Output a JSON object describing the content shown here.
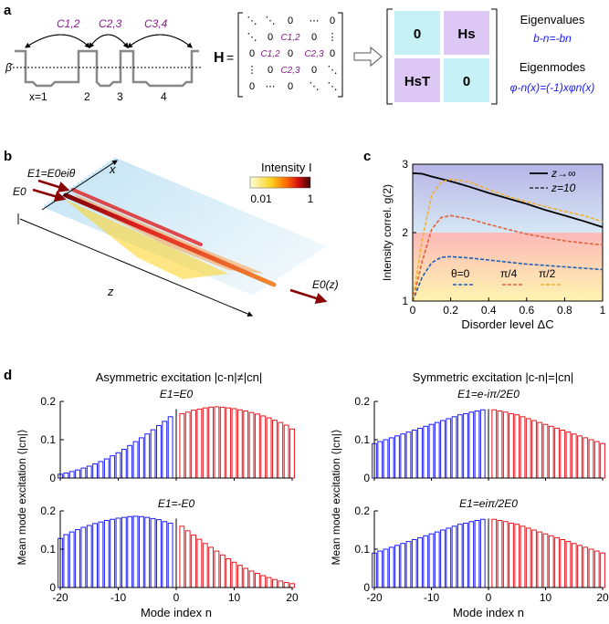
{
  "panel_labels": {
    "a": "a",
    "b": "b",
    "c": "c",
    "d": "d"
  },
  "panel_a": {
    "coupling_labels": [
      "C1,2",
      "C2,3",
      "C3,4"
    ],
    "beta_label": "β̄",
    "site_labels": [
      "x=1",
      "2",
      "3",
      "4"
    ],
    "H_label": "H",
    "matrix_rows": [
      [
        "⋱",
        "⋱",
        "0",
        "⋯",
        "0"
      ],
      [
        "⋱",
        "0",
        "C1,2",
        "0",
        "⋮"
      ],
      [
        "0",
        "C1,2",
        "0",
        "C2,3",
        "0"
      ],
      [
        "⋮",
        "0",
        "C2,3",
        "0",
        "⋱"
      ],
      [
        "0",
        "⋯",
        "0",
        "⋱",
        "⋱"
      ]
    ],
    "block": {
      "tl": "0",
      "tr": "Hs",
      "bl": "HsT",
      "br": "0"
    },
    "eigenvalues_title": "Eigenvalues",
    "eigenvalues_eq": "b-n=-bn",
    "eigenmodes_title": "Eigenmodes",
    "eigenmodes_eq": "φ-n(x)=(-1)xφn(x)"
  },
  "panel_b": {
    "e1_label": "E1=E0eiθ",
    "e0_label": "E0",
    "x_axis": "x",
    "z_axis": "z",
    "out_label": "E0(z)",
    "colorbar_title": "Intensity I",
    "colorbar_ticks": [
      "0.01",
      "1"
    ]
  },
  "chart_data": [
    {
      "id": "c",
      "type": "line",
      "ylabel": "Intensity correl. g(2)",
      "xlabel": "Disorder level ΔC",
      "xlim": [
        0,
        1
      ],
      "ylim": [
        1,
        3
      ],
      "xticks": [
        "0",
        "0.2",
        "0.4",
        "0.6",
        "0.8",
        "1"
      ],
      "yticks": [
        "1",
        "2",
        "3"
      ],
      "legend": [
        "z→∞",
        "z=10"
      ],
      "theta_legend": [
        "θ=0",
        "π/4",
        "π/2"
      ],
      "series": [
        {
          "name": "z→∞",
          "x": [
            0,
            0.05,
            0.1,
            0.2,
            0.3,
            0.4,
            0.5,
            0.6,
            0.7,
            0.8,
            0.9,
            1.0
          ],
          "y": [
            2.87,
            2.86,
            2.82,
            2.75,
            2.67,
            2.58,
            2.5,
            2.42,
            2.33,
            2.25,
            2.17,
            2.08
          ]
        },
        {
          "name": "θ=0",
          "x": [
            0,
            0.05,
            0.1,
            0.15,
            0.2,
            0.3,
            0.4,
            0.5,
            0.6,
            0.7,
            0.8,
            0.9,
            1.0
          ],
          "y": [
            1.0,
            1.35,
            1.56,
            1.64,
            1.65,
            1.63,
            1.6,
            1.57,
            1.54,
            1.52,
            1.5,
            1.48,
            1.46
          ]
        },
        {
          "name": "π/4",
          "x": [
            0,
            0.05,
            0.1,
            0.15,
            0.2,
            0.3,
            0.4,
            0.5,
            0.6,
            0.7,
            0.8,
            0.9,
            1.0
          ],
          "y": [
            1.0,
            1.58,
            2.05,
            2.22,
            2.25,
            2.2,
            2.12,
            2.05,
            1.98,
            1.93,
            1.88,
            1.85,
            1.82
          ]
        },
        {
          "name": "π/2",
          "x": [
            0,
            0.05,
            0.1,
            0.15,
            0.2,
            0.3,
            0.4,
            0.5,
            0.6,
            0.7,
            0.8,
            0.9,
            1.0
          ],
          "y": [
            1.0,
            1.9,
            2.55,
            2.74,
            2.78,
            2.74,
            2.63,
            2.53,
            2.45,
            2.38,
            2.31,
            2.25,
            2.16
          ]
        }
      ]
    },
    {
      "id": "d1",
      "type": "bar",
      "column_title": "Asymmetric excitation |c-n|≠|cn|",
      "title": "E1=E0",
      "ylabel": "Mean mode excitation ⟨|cn|⟩",
      "xlabel": "",
      "ylim": [
        0,
        0.2
      ],
      "yticks": [
        "0",
        "0.1",
        "0.2"
      ],
      "n": [
        -20,
        -19,
        -18,
        -17,
        -16,
        -15,
        -14,
        -13,
        -12,
        -11,
        -10,
        -9,
        -8,
        -7,
        -6,
        -5,
        -4,
        -3,
        -2,
        -1,
        1,
        2,
        3,
        4,
        5,
        6,
        7,
        8,
        9,
        10,
        11,
        12,
        13,
        14,
        15,
        16,
        17,
        18,
        19,
        20
      ],
      "values": [
        0.01,
        0.013,
        0.017,
        0.021,
        0.026,
        0.031,
        0.037,
        0.043,
        0.05,
        0.058,
        0.066,
        0.075,
        0.085,
        0.095,
        0.105,
        0.115,
        0.126,
        0.137,
        0.148,
        0.16,
        0.168,
        0.172,
        0.177,
        0.18,
        0.183,
        0.185,
        0.186,
        0.185,
        0.183,
        0.181,
        0.178,
        0.175,
        0.171,
        0.167,
        0.162,
        0.157,
        0.151,
        0.145,
        0.138,
        0.128
      ]
    },
    {
      "id": "d2",
      "type": "bar",
      "title": "E1=-E0",
      "ylabel": "Mean mode excitation ⟨|cn|⟩",
      "xlabel": "Mode index n",
      "ylim": [
        0,
        0.2
      ],
      "yticks": [
        "0",
        "0.1",
        "0.2"
      ],
      "xticks": [
        "-20",
        "-10",
        "0",
        "10",
        "20"
      ],
      "n": [
        -20,
        -19,
        -18,
        -17,
        -16,
        -15,
        -14,
        -13,
        -12,
        -11,
        -10,
        -9,
        -8,
        -7,
        -6,
        -5,
        -4,
        -3,
        -2,
        -1,
        1,
        2,
        3,
        4,
        5,
        6,
        7,
        8,
        9,
        10,
        11,
        12,
        13,
        14,
        15,
        16,
        17,
        18,
        19,
        20
      ],
      "values": [
        0.128,
        0.138,
        0.145,
        0.151,
        0.157,
        0.162,
        0.167,
        0.171,
        0.175,
        0.178,
        0.181,
        0.183,
        0.185,
        0.186,
        0.185,
        0.183,
        0.18,
        0.177,
        0.172,
        0.168,
        0.16,
        0.148,
        0.137,
        0.126,
        0.115,
        0.105,
        0.095,
        0.085,
        0.075,
        0.066,
        0.058,
        0.05,
        0.043,
        0.037,
        0.031,
        0.026,
        0.021,
        0.017,
        0.013,
        0.01
      ]
    },
    {
      "id": "d3",
      "type": "bar",
      "column_title": "Symmetric excitation |c-n|=|cn|",
      "title": "E1=e-iπ/2E0",
      "ylabel": "Mean mode excitation ⟨|cn|⟩",
      "xlabel": "",
      "ylim": [
        0,
        0.2
      ],
      "yticks": [
        "0",
        "0.1",
        "0.2"
      ],
      "n": [
        -20,
        -19,
        -18,
        -17,
        -16,
        -15,
        -14,
        -13,
        -12,
        -11,
        -10,
        -9,
        -8,
        -7,
        -6,
        -5,
        -4,
        -3,
        -2,
        -1,
        1,
        2,
        3,
        4,
        5,
        6,
        7,
        8,
        9,
        10,
        11,
        12,
        13,
        14,
        15,
        16,
        17,
        18,
        19,
        20
      ],
      "values": [
        0.09,
        0.095,
        0.1,
        0.105,
        0.11,
        0.115,
        0.12,
        0.125,
        0.13,
        0.135,
        0.14,
        0.145,
        0.15,
        0.155,
        0.16,
        0.165,
        0.168,
        0.172,
        0.175,
        0.178,
        0.178,
        0.175,
        0.172,
        0.168,
        0.165,
        0.16,
        0.155,
        0.15,
        0.145,
        0.14,
        0.135,
        0.13,
        0.125,
        0.12,
        0.115,
        0.11,
        0.105,
        0.1,
        0.095,
        0.09
      ]
    },
    {
      "id": "d4",
      "type": "bar",
      "title": "E1=eiπ/2E0",
      "ylabel": "Mean mode excitation ⟨|cn|⟩",
      "xlabel": "Mode index n",
      "ylim": [
        0,
        0.2
      ],
      "yticks": [
        "0",
        "0.1",
        "0.2"
      ],
      "xticks": [
        "-20",
        "-10",
        "0",
        "10",
        "20"
      ],
      "n": [
        -20,
        -19,
        -18,
        -17,
        -16,
        -15,
        -14,
        -13,
        -12,
        -11,
        -10,
        -9,
        -8,
        -7,
        -6,
        -5,
        -4,
        -3,
        -2,
        -1,
        1,
        2,
        3,
        4,
        5,
        6,
        7,
        8,
        9,
        10,
        11,
        12,
        13,
        14,
        15,
        16,
        17,
        18,
        19,
        20
      ],
      "values": [
        0.09,
        0.095,
        0.1,
        0.105,
        0.11,
        0.115,
        0.12,
        0.125,
        0.13,
        0.135,
        0.14,
        0.145,
        0.15,
        0.155,
        0.16,
        0.165,
        0.168,
        0.172,
        0.175,
        0.178,
        0.178,
        0.175,
        0.172,
        0.168,
        0.165,
        0.16,
        0.155,
        0.15,
        0.145,
        0.14,
        0.135,
        0.13,
        0.125,
        0.12,
        0.115,
        0.11,
        0.105,
        0.1,
        0.095,
        0.09
      ]
    }
  ],
  "colors": {
    "blue": "#1a1aff",
    "red": "#e8141e",
    "purple": "#8b1a8b",
    "cyan_block": "#c6f2f7",
    "violet_block": "#dcc7f5",
    "line_black": "#000000",
    "theta0": "#1f5fb3",
    "theta45": "#e0623a",
    "theta90": "#f0b030"
  }
}
